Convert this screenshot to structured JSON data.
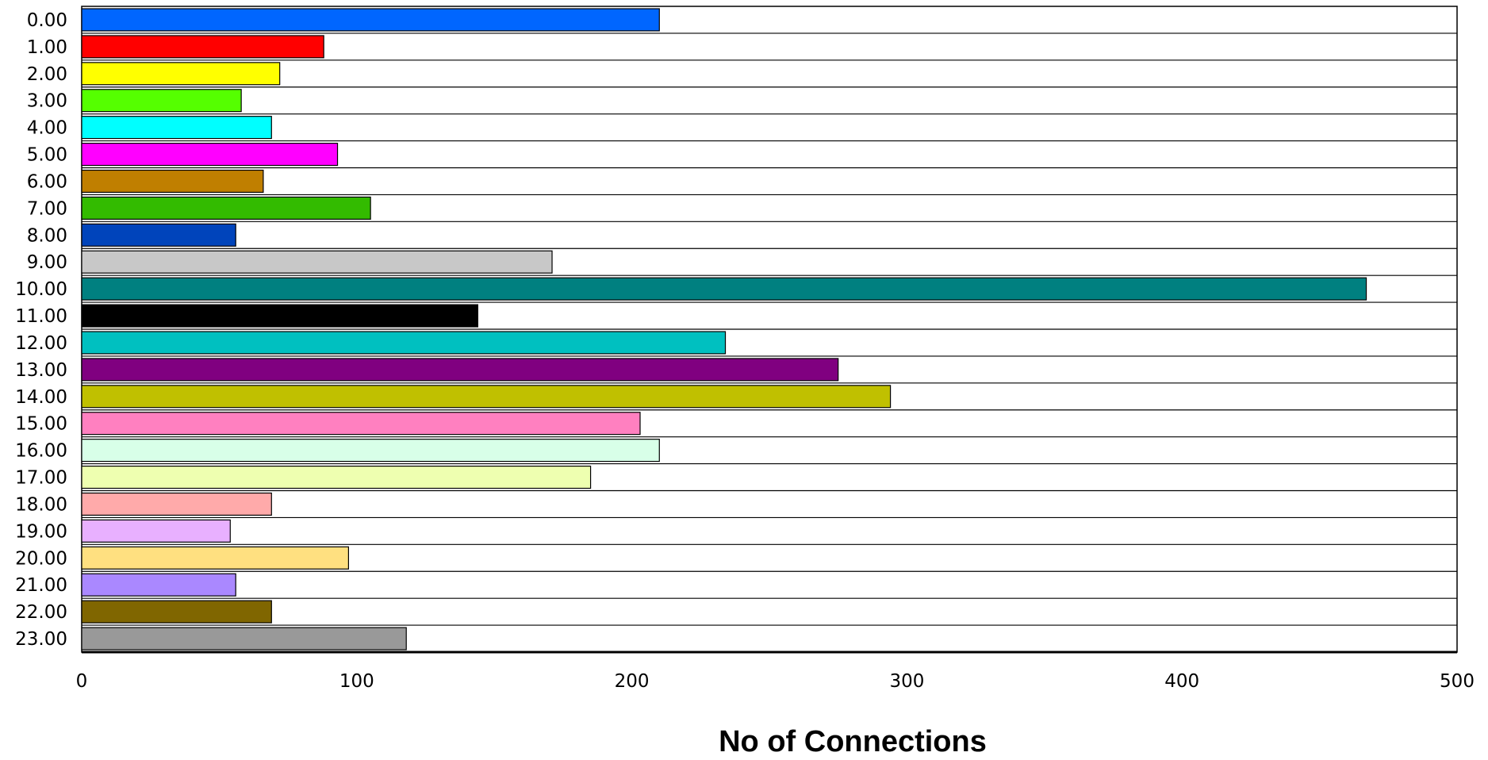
{
  "chart_data": {
    "type": "bar",
    "orientation": "horizontal",
    "title": "",
    "xlabel": "No of Connections",
    "ylabel": "",
    "xlim": [
      0,
      500
    ],
    "x_ticks": [
      0,
      100,
      200,
      300,
      400,
      500
    ],
    "x_tick_labels": [
      "0",
      "100",
      "200",
      "300",
      "400",
      "500"
    ],
    "grid": "horizontal row separators",
    "legend": "none",
    "categories": [
      "0.00",
      "1.00",
      "2.00",
      "3.00",
      "4.00",
      "5.00",
      "6.00",
      "7.00",
      "8.00",
      "9.00",
      "10.00",
      "11.00",
      "12.00",
      "13.00",
      "14.00",
      "15.00",
      "16.00",
      "17.00",
      "18.00",
      "19.00",
      "20.00",
      "21.00",
      "22.00",
      "23.00"
    ],
    "values": [
      210,
      88,
      72,
      58,
      69,
      93,
      66,
      105,
      56,
      171,
      467,
      144,
      234,
      275,
      294,
      203,
      210,
      185,
      69,
      54,
      97,
      56,
      69,
      118
    ],
    "colors": [
      "#0066ff",
      "#ff0000",
      "#ffff00",
      "#55ff00",
      "#00ffff",
      "#ff00ff",
      "#c07f00",
      "#33bb00",
      "#0044bb",
      "#c8c8c8",
      "#008080",
      "#000000",
      "#00c0c0",
      "#800080",
      "#c0c000",
      "#ff80c0",
      "#d8ffe8",
      "#eeffb0",
      "#ffaaaa",
      "#e8b0ff",
      "#ffe080",
      "#aa88ff",
      "#806600",
      "#999999"
    ]
  }
}
